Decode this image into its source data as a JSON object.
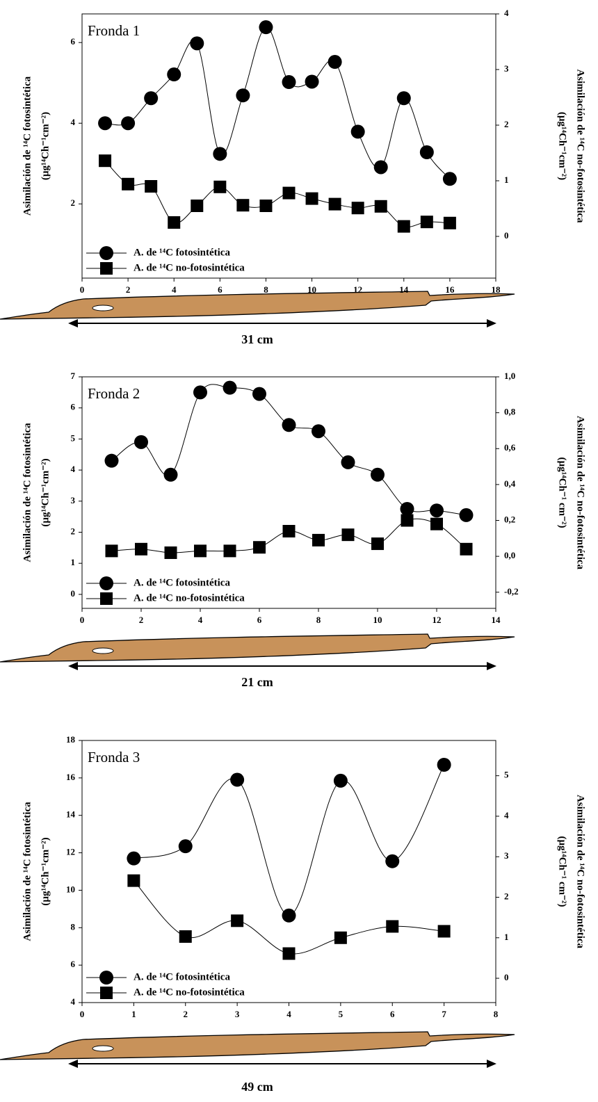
{
  "chart_data": [
    {
      "type": "line",
      "title": "Fronda 1",
      "x": [
        1,
        2,
        3,
        4,
        5,
        6,
        7,
        8,
        9,
        10,
        11,
        12,
        13,
        14,
        15,
        16
      ],
      "series": [
        {
          "name": "A. de ¹⁴C fotosintética",
          "color": "#000000",
          "marker": "circle",
          "values": [
            4.0,
            4.0,
            4.62,
            5.21,
            5.98,
            3.24,
            4.69,
            6.38,
            5.02,
            5.03,
            5.52,
            3.79,
            2.91,
            4.62,
            3.28,
            2.62
          ]
        },
        {
          "name": "A. de ¹⁴C no-fotosintética",
          "color": "#000000",
          "marker": "square",
          "axis": "y2",
          "values": [
            1.36,
            0.94,
            0.9,
            0.25,
            0.55,
            0.89,
            0.56,
            0.55,
            0.78,
            0.68,
            0.58,
            0.51,
            0.54,
            0.18,
            0.26,
            0.24
          ]
        }
      ],
      "xlim": [
        0,
        18
      ],
      "xticks": [
        0,
        2,
        4,
        6,
        8,
        10,
        12,
        14,
        16,
        18
      ],
      "ylim": [
        0.16,
        6.71
      ],
      "yticks": [
        2,
        4,
        6
      ],
      "y2lim": [
        -0.75,
        4.0
      ],
      "y2ticks": [
        0,
        1,
        2,
        3,
        4
      ],
      "ylabel": "Asimilación de ¹⁴C fotosintética",
      "ylabel_unit": "(µg¹⁴Ch⁻¹cm⁻²)",
      "y2label": "Asimilación de ¹⁴C no-fotosintética",
      "y2label_unit": "(µg¹⁴Ch⁻¹cm⁻²)",
      "legend": "lower left",
      "annotation": "31 cm"
    },
    {
      "type": "line",
      "title": "Fronda 2",
      "x": [
        1,
        2,
        3,
        4,
        5,
        6,
        7,
        8,
        9,
        10,
        11,
        12,
        13
      ],
      "series": [
        {
          "name": "A. de ¹⁴C fotosintética",
          "color": "#000000",
          "marker": "circle",
          "values": [
            4.3,
            4.9,
            3.85,
            6.5,
            6.65,
            6.45,
            5.45,
            5.25,
            4.25,
            3.85,
            2.75,
            2.7,
            2.55
          ]
        },
        {
          "name": "A. de ¹⁴C no-fotosintética",
          "color": "#000000",
          "marker": "square",
          "axis": "y2",
          "values": [
            0.03,
            0.04,
            0.02,
            0.03,
            0.03,
            0.05,
            0.14,
            0.09,
            0.12,
            0.07,
            0.2,
            0.18,
            0.04
          ]
        }
      ],
      "xlim": [
        0,
        14
      ],
      "xticks": [
        0,
        2,
        4,
        6,
        8,
        10,
        12,
        14
      ],
      "ylim": [
        -0.45,
        7
      ],
      "yticks": [
        0,
        1,
        2,
        3,
        4,
        5,
        6,
        7
      ],
      "y2lim": [
        -0.29,
        1.0
      ],
      "y2ticks": [
        {
          "value": -0.2,
          "label": "-0,2"
        },
        {
          "value": 0,
          "label": "0,0"
        },
        {
          "value": 0.2,
          "label": "0,2"
        },
        {
          "value": 0.4,
          "label": "0,4"
        },
        {
          "value": 0.6,
          "label": "0,6"
        },
        {
          "value": 0.8,
          "label": "0,8"
        },
        {
          "value": 1.0,
          "label": "1,0"
        }
      ],
      "ylabel": "Asimilación de ¹⁴C fotosintética",
      "ylabel_unit": "(µg¹⁴Ch⁻¹cm⁻²)",
      "y2label": "Asimilación de ¹⁴C no-fotosintética",
      "y2label_unit": "(µg¹⁴Ch⁻¹ cm⁻²)",
      "legend": "lower left",
      "annotation": "21 cm"
    },
    {
      "type": "line",
      "title": "Fronda 3",
      "x": [
        1,
        2,
        3,
        4,
        5,
        6,
        7
      ],
      "series": [
        {
          "name": "A. de ¹⁴C fotosintética",
          "color": "#000000",
          "marker": "circle",
          "values": [
            11.7,
            12.35,
            15.9,
            8.65,
            15.85,
            11.55,
            16.7
          ]
        },
        {
          "name": "A. de ¹⁴C no-fotosintética",
          "color": "#000000",
          "marker": "square",
          "axis": "y2",
          "values": [
            2.41,
            1.03,
            1.42,
            0.61,
            1.0,
            1.28,
            1.16
          ]
        }
      ],
      "xlim": [
        0,
        8
      ],
      "xticks": [
        0,
        1,
        2,
        3,
        4,
        5,
        6,
        7,
        8
      ],
      "ylim": [
        4,
        18
      ],
      "yticks": [
        4,
        6,
        8,
        10,
        12,
        14,
        16,
        18
      ],
      "y2lim": [
        -0.6,
        5.87
      ],
      "y2ticks": [
        0,
        1,
        2,
        3,
        4,
        5
      ],
      "ylabel": "Asimilación de ¹⁴C fotosintética",
      "ylabel_unit": "(µg¹⁴Ch⁻¹cm⁻²)",
      "y2label": "Asimilación de ¹⁴C no-fotosintética",
      "y2label_unit": "(µg¹⁴Ch⁻¹ cm⁻²)",
      "legend": "lower left",
      "annotation": "49 cm"
    }
  ]
}
